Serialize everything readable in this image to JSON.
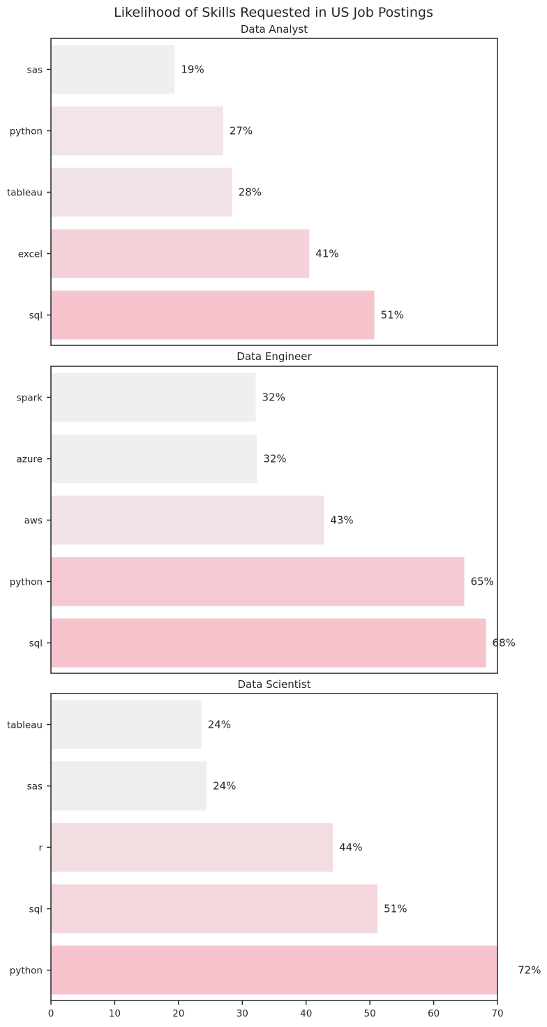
{
  "chart_data": {
    "type": "bar",
    "orientation": "horizontal",
    "title": "Likelihood of Skills Requested in US Job Postings",
    "xlim": [
      0,
      70
    ],
    "xticks": [
      0,
      10,
      20,
      30,
      40,
      50,
      60,
      70
    ],
    "shared_x": true,
    "value_format": "percent, no decimals",
    "color_scale": {
      "low": "#efefef",
      "high": "#f7c4ce"
    },
    "panels": [
      {
        "title": "Data Analyst",
        "categories": [
          "sas",
          "python",
          "tableau",
          "excel",
          "sql"
        ],
        "values": [
          19.4,
          27.0,
          28.4,
          40.5,
          50.7
        ],
        "labels": [
          "19%",
          "27%",
          "28%",
          "41%",
          "51%"
        ]
      },
      {
        "title": "Data Engineer",
        "categories": [
          "spark",
          "azure",
          "aws",
          "python",
          "sql"
        ],
        "values": [
          32.1,
          32.3,
          42.8,
          64.8,
          68.2
        ],
        "labels": [
          "32%",
          "32%",
          "43%",
          "65%",
          "68%"
        ]
      },
      {
        "title": "Data Scientist",
        "categories": [
          "tableau",
          "sas",
          "r",
          "sql",
          "python"
        ],
        "values": [
          23.6,
          24.4,
          44.2,
          51.2,
          72.2
        ],
        "labels": [
          "24%",
          "24%",
          "44%",
          "51%",
          "72%"
        ]
      }
    ]
  }
}
